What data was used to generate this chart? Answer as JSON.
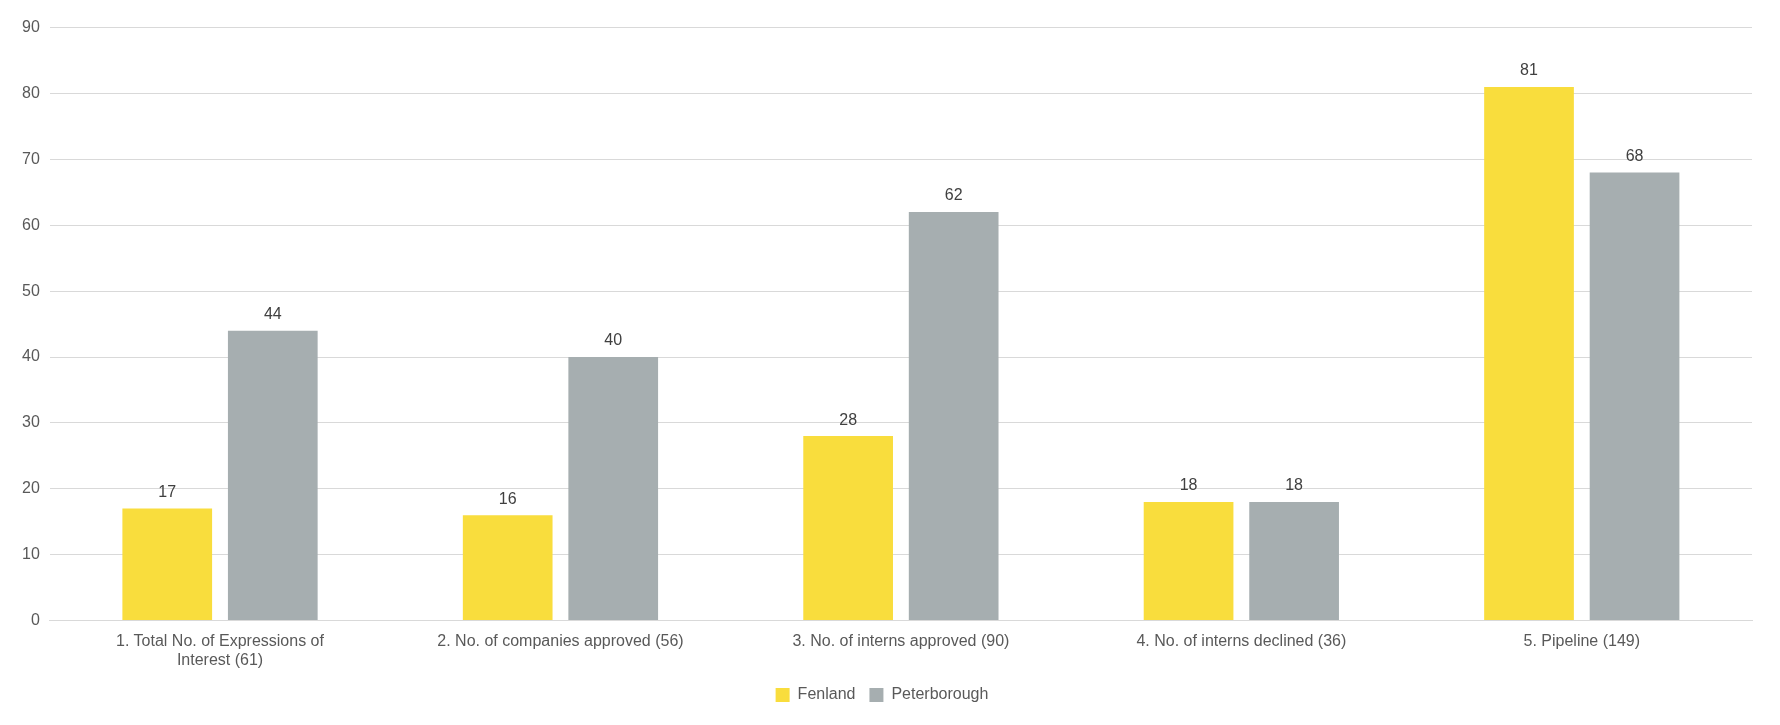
{
  "chart_data": {
    "type": "bar",
    "categories": [
      "1. Total No. of Expressions of Interest (61)",
      "2. No. of companies approved (56)",
      "3. No. of interns approved (90)",
      "4. No. of interns declined (36)",
      "5. Pipeline (149)"
    ],
    "series": [
      {
        "name": "Fenland",
        "color": "#f9dd3d",
        "values": [
          17,
          16,
          28,
          18,
          81
        ]
      },
      {
        "name": "Peterborough",
        "color": "#a6aeb0",
        "values": [
          44,
          40,
          62,
          18,
          68
        ]
      }
    ],
    "ylim": [
      0,
      90
    ],
    "yticks": [
      0,
      10,
      20,
      30,
      40,
      50,
      60,
      70,
      80,
      90
    ],
    "grid": "y",
    "legend": "bottom",
    "data_labels": true
  }
}
